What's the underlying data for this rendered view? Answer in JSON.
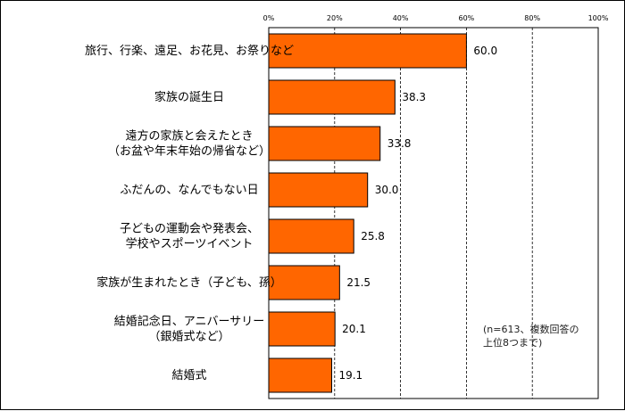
{
  "chart_data": {
    "type": "bar",
    "orientation": "horizontal",
    "categories": [
      [
        "旅行、行楽、遠足、お花見、お祭りなど"
      ],
      [
        "家族の誕生日"
      ],
      [
        "遠方の家族と会えたとき",
        "（お盆や年末年始の帰省など）"
      ],
      [
        "ふだんの、なんでもない日"
      ],
      [
        "子どもの運動会や発表会、",
        "学校やスポーツイベント"
      ],
      [
        "家族が生まれたとき（子ども、孫）"
      ],
      [
        "結婚記念日、アニバーサリー",
        "（銀婚式など）"
      ],
      [
        "結婚式"
      ]
    ],
    "values": [
      60.0,
      38.3,
      33.8,
      30.0,
      25.8,
      21.5,
      20.1,
      19.1
    ],
    "value_labels": [
      "60.0",
      "38.3",
      "33.8",
      "30.0",
      "25.8",
      "21.5",
      "20.1",
      "19.1"
    ],
    "xlim": [
      0,
      100
    ],
    "xticks": [
      "0%",
      "20%",
      "40%",
      "60%",
      "80%",
      "100%"
    ],
    "grid": "vertical dashed",
    "bar_color": "#FF6600",
    "note": [
      "(n=613、複数回答の",
      "上位8つまで)"
    ]
  }
}
